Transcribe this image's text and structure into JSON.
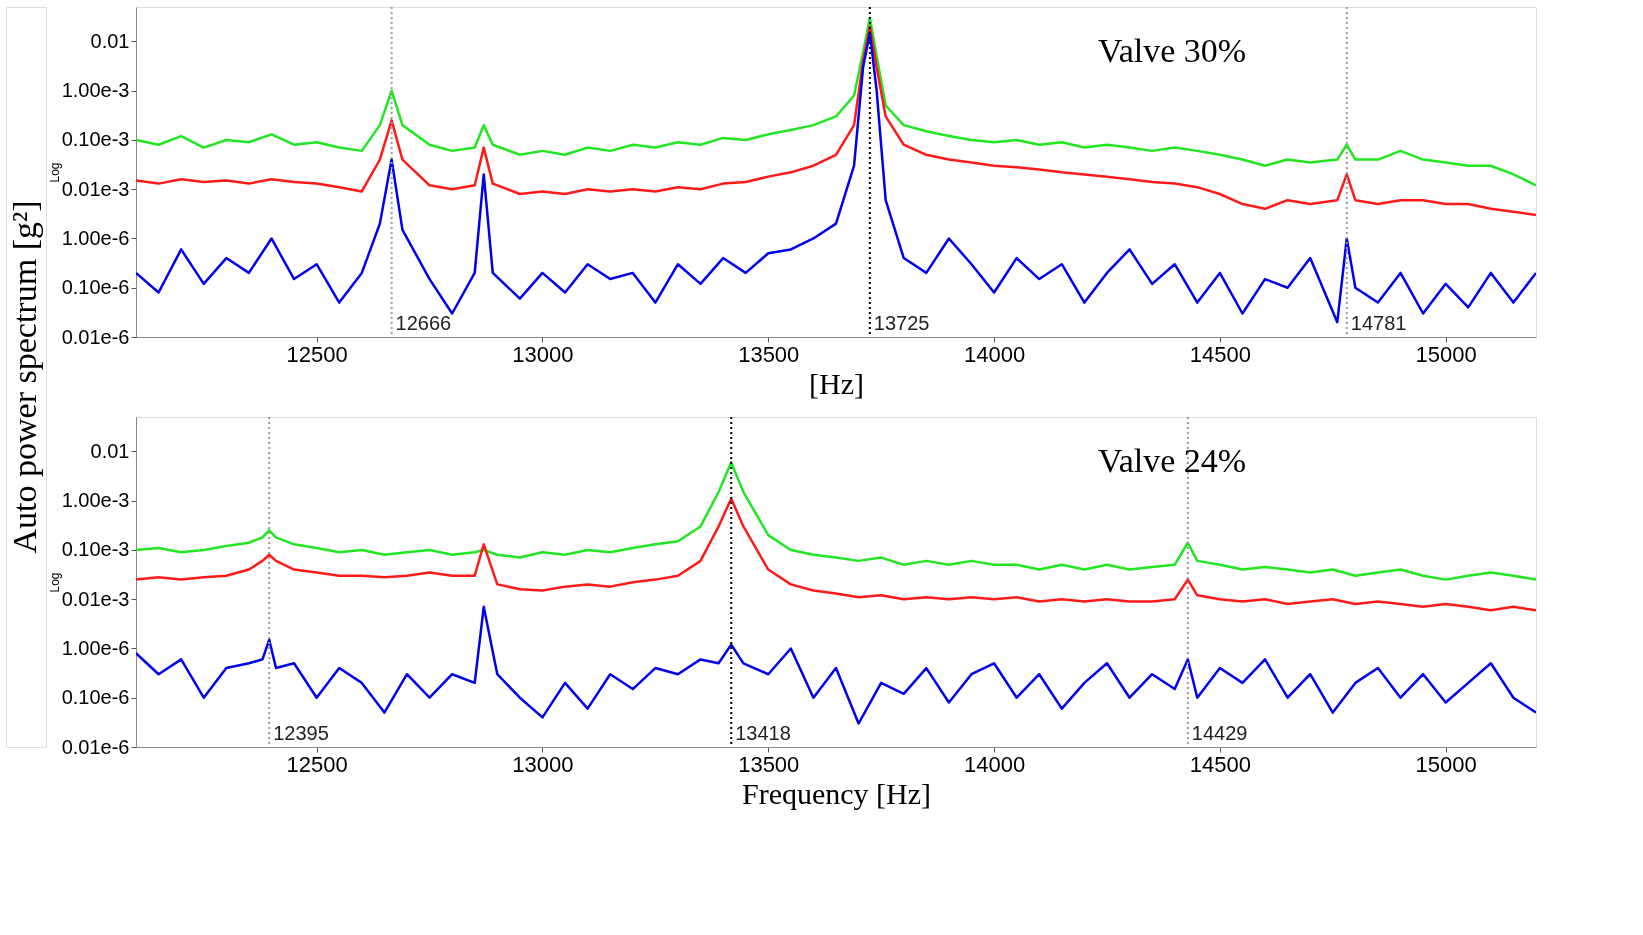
{
  "chart_data": [
    {
      "type": "line",
      "xlabel": "[Hz]",
      "ylabel": "Log",
      "log": "y",
      "grid": false,
      "marker": "none",
      "line_style": "solid",
      "annotations": [
        "Valve 30%",
        "Auto power spectrum [g²]"
      ],
      "xlim": [
        12100,
        15200
      ],
      "xticks": [
        12500,
        13000,
        13500,
        14000,
        14500,
        15000
      ],
      "ylim": [
        1e-08,
        0.05
      ],
      "yticks": [
        {
          "value": 1e-08,
          "label": "0.01e-6"
        },
        {
          "value": 1e-07,
          "label": "0.10e-6"
        },
        {
          "value": 1e-06,
          "label": "1.00e-6"
        },
        {
          "value": 1e-05,
          "label": "0.01e-3"
        },
        {
          "value": 0.0001,
          "label": "0.10e-3"
        },
        {
          "value": 0.001,
          "label": "1.00e-3"
        },
        0.01
      ],
      "x": [
        12100,
        12150,
        12200,
        12250,
        12300,
        12350,
        12400,
        12450,
        12500,
        12550,
        12600,
        12640,
        12666,
        12690,
        12750,
        12800,
        12850,
        12870,
        12890,
        12950,
        13000,
        13050,
        13100,
        13150,
        13200,
        13250,
        13300,
        13350,
        13400,
        13450,
        13500,
        13550,
        13600,
        13650,
        13690,
        13710,
        13725,
        13740,
        13760,
        13800,
        13850,
        13900,
        13950,
        14000,
        14050,
        14100,
        14150,
        14200,
        14250,
        14300,
        14350,
        14400,
        14450,
        14500,
        14550,
        14600,
        14650,
        14700,
        14760,
        14781,
        14800,
        14850,
        14900,
        14950,
        15000,
        15050,
        15100,
        15150,
        15200
      ],
      "series": [
        {
          "color": "#22e622",
          "values": [
            0.0001,
            8e-05,
            0.00012,
            7e-05,
            0.0001,
            9e-05,
            0.00013,
            8e-05,
            9e-05,
            7e-05,
            6e-05,
            0.0002,
            0.001,
            0.0002,
            8e-05,
            6e-05,
            7e-05,
            0.0002,
            8e-05,
            5e-05,
            6e-05,
            5e-05,
            7e-05,
            6e-05,
            8e-05,
            7e-05,
            9e-05,
            8e-05,
            0.00011,
            0.0001,
            0.00013,
            0.00016,
            0.0002,
            0.0003,
            0.0008,
            0.006,
            0.03,
            0.005,
            0.0005,
            0.0002,
            0.00015,
            0.00012,
            0.0001,
            9e-05,
            0.0001,
            8e-05,
            9e-05,
            7e-05,
            8e-05,
            7e-05,
            6e-05,
            7e-05,
            6e-05,
            5e-05,
            4e-05,
            3e-05,
            4e-05,
            3.5e-05,
            4e-05,
            8e-05,
            4e-05,
            4e-05,
            6e-05,
            4e-05,
            3.5e-05,
            3e-05,
            3e-05,
            2e-05,
            1.2e-05
          ]
        },
        {
          "color": "#ff1a1a",
          "values": [
            1.5e-05,
            1.3e-05,
            1.6e-05,
            1.4e-05,
            1.5e-05,
            1.3e-05,
            1.6e-05,
            1.4e-05,
            1.3e-05,
            1.1e-05,
            9e-06,
            4e-05,
            0.00025,
            4e-05,
            1.2e-05,
            1e-05,
            1.2e-05,
            7e-05,
            1.3e-05,
            8e-06,
            9e-06,
            8e-06,
            1e-05,
            9e-06,
            1e-05,
            9e-06,
            1.1e-05,
            1e-05,
            1.3e-05,
            1.4e-05,
            1.8e-05,
            2.2e-05,
            3e-05,
            5e-05,
            0.0002,
            0.004,
            0.02,
            0.003,
            0.0003,
            8e-05,
            5e-05,
            4e-05,
            3.5e-05,
            3e-05,
            2.8e-05,
            2.5e-05,
            2.2e-05,
            2e-05,
            1.8e-05,
            1.6e-05,
            1.4e-05,
            1.3e-05,
            1.1e-05,
            8e-06,
            5e-06,
            4e-06,
            6e-06,
            5e-06,
            6e-06,
            2e-05,
            6e-06,
            5e-06,
            6e-06,
            6e-06,
            5e-06,
            5e-06,
            4e-06,
            3.5e-06,
            3e-06
          ]
        },
        {
          "color": "#0000ee",
          "values": [
            2e-07,
            8e-08,
            6e-07,
            1.2e-07,
            4e-07,
            2e-07,
            1e-06,
            1.5e-07,
            3e-07,
            5e-08,
            2e-07,
            2e-06,
            4e-05,
            1.5e-06,
            1.5e-07,
            3e-08,
            2e-07,
            2e-05,
            2e-07,
            6e-08,
            2e-07,
            8e-08,
            3e-07,
            1.5e-07,
            2e-07,
            5e-08,
            3e-07,
            1.2e-07,
            4e-07,
            2e-07,
            5e-07,
            6e-07,
            1e-06,
            2e-06,
            3e-05,
            0.003,
            0.015,
            0.001,
            6e-06,
            4e-07,
            2e-07,
            1e-06,
            3e-07,
            8e-08,
            4e-07,
            1.5e-07,
            3e-07,
            5e-08,
            2e-07,
            6e-07,
            1.2e-07,
            3e-07,
            5e-08,
            2e-07,
            3e-08,
            1.5e-07,
            1e-07,
            4e-07,
            2e-08,
            1e-06,
            1e-07,
            5e-08,
            2e-07,
            3e-08,
            1.2e-07,
            4e-08,
            2e-07,
            5e-08,
            2e-07
          ]
        }
      ],
      "ref_lines": [
        {
          "axis": "x",
          "value": 12666,
          "label": "12666",
          "color": "#999999",
          "line_style": "dotted"
        },
        {
          "axis": "x",
          "value": 13725,
          "label": "13725",
          "color": "#000000",
          "line_style": "dotted"
        },
        {
          "axis": "x",
          "value": 14781,
          "label": "14781",
          "color": "#999999",
          "line_style": "dotted"
        }
      ]
    },
    {
      "type": "line",
      "xlabel": "Frequency [Hz]",
      "ylabel": "Log",
      "log": "y",
      "grid": false,
      "marker": "none",
      "line_style": "solid",
      "annotations": [
        "Valve 24%"
      ],
      "xlim": [
        12100,
        15200
      ],
      "xticks": [
        12500,
        13000,
        13500,
        14000,
        14500,
        15000
      ],
      "ylim": [
        1e-08,
        0.05
      ],
      "yticks": [
        {
          "value": 1e-08,
          "label": "0.01e-6"
        },
        {
          "value": 1e-07,
          "label": "0.10e-6"
        },
        {
          "value": 1e-06,
          "label": "1.00e-6"
        },
        {
          "value": 1e-05,
          "label": "0.01e-3"
        },
        {
          "value": 0.0001,
          "label": "0.10e-3"
        },
        {
          "value": 0.001,
          "label": "1.00e-3"
        },
        0.01
      ],
      "x": [
        12100,
        12150,
        12200,
        12250,
        12300,
        12350,
        12380,
        12395,
        12410,
        12450,
        12500,
        12550,
        12600,
        12650,
        12700,
        12750,
        12800,
        12850,
        12870,
        12900,
        12950,
        13000,
        13050,
        13100,
        13150,
        13200,
        13250,
        13300,
        13350,
        13390,
        13418,
        13445,
        13500,
        13550,
        13600,
        13650,
        13700,
        13750,
        13800,
        13850,
        13900,
        13950,
        14000,
        14050,
        14100,
        14150,
        14200,
        14250,
        14300,
        14350,
        14400,
        14429,
        14450,
        14500,
        14550,
        14600,
        14650,
        14700,
        14750,
        14800,
        14850,
        14900,
        14950,
        15000,
        15050,
        15100,
        15150,
        15200
      ],
      "series": [
        {
          "color": "#22e622",
          "values": [
            0.0001,
            0.00011,
            9e-05,
            0.0001,
            0.00012,
            0.00014,
            0.00018,
            0.00025,
            0.00018,
            0.00013,
            0.00011,
            9e-05,
            0.0001,
            8e-05,
            9e-05,
            0.0001,
            8e-05,
            9e-05,
            0.0001,
            8e-05,
            7e-05,
            9e-05,
            8e-05,
            0.0001,
            9e-05,
            0.00011,
            0.00013,
            0.00015,
            0.0003,
            0.0015,
            0.006,
            0.0015,
            0.0002,
            0.0001,
            8e-05,
            7e-05,
            6e-05,
            7e-05,
            5e-05,
            6e-05,
            5e-05,
            6e-05,
            5e-05,
            5e-05,
            4e-05,
            5e-05,
            4e-05,
            5e-05,
            4e-05,
            4.5e-05,
            5e-05,
            0.00014,
            6e-05,
            5e-05,
            4e-05,
            4.5e-05,
            4e-05,
            3.5e-05,
            4e-05,
            3e-05,
            3.5e-05,
            4e-05,
            3e-05,
            2.5e-05,
            3e-05,
            3.5e-05,
            3e-05,
            2.5e-05
          ]
        },
        {
          "color": "#ff1a1a",
          "values": [
            2.5e-05,
            2.8e-05,
            2.5e-05,
            2.8e-05,
            3e-05,
            4e-05,
            6e-05,
            8e-05,
            6e-05,
            4e-05,
            3.5e-05,
            3e-05,
            3e-05,
            2.8e-05,
            3e-05,
            3.5e-05,
            3e-05,
            3e-05,
            0.00013,
            2e-05,
            1.6e-05,
            1.5e-05,
            1.8e-05,
            2e-05,
            1.8e-05,
            2.2e-05,
            2.5e-05,
            3e-05,
            6e-05,
            0.0003,
            0.0011,
            0.0003,
            4e-05,
            2e-05,
            1.5e-05,
            1.3e-05,
            1.1e-05,
            1.2e-05,
            1e-05,
            1.1e-05,
            1e-05,
            1.1e-05,
            1e-05,
            1.1e-05,
            9e-06,
            1e-05,
            9e-06,
            1e-05,
            9e-06,
            9e-06,
            1e-05,
            2.5e-05,
            1.2e-05,
            1e-05,
            9e-06,
            1e-05,
            8e-06,
            9e-06,
            1e-05,
            8e-06,
            9e-06,
            8e-06,
            7e-06,
            8e-06,
            7e-06,
            6e-06,
            7e-06,
            6e-06
          ]
        },
        {
          "color": "#0000ee",
          "values": [
            8e-07,
            3e-07,
            6e-07,
            1e-07,
            4e-07,
            5e-07,
            6e-07,
            1.5e-06,
            4e-07,
            5e-07,
            1e-07,
            4e-07,
            2e-07,
            5e-08,
            3e-07,
            1e-07,
            3e-07,
            2e-07,
            7e-06,
            3e-07,
            1e-07,
            4e-08,
            2e-07,
            6e-08,
            3e-07,
            1.5e-07,
            4e-07,
            3e-07,
            6e-07,
            5e-07,
            1.2e-06,
            5e-07,
            3e-07,
            1e-06,
            1e-07,
            4e-07,
            3e-08,
            2e-07,
            1.2e-07,
            4e-07,
            8e-08,
            3e-07,
            5e-07,
            1e-07,
            3e-07,
            6e-08,
            2e-07,
            5e-07,
            1e-07,
            3e-07,
            1.5e-07,
            6e-07,
            1e-07,
            4e-07,
            2e-07,
            6e-07,
            1e-07,
            3e-07,
            5e-08,
            2e-07,
            4e-07,
            1e-07,
            3e-07,
            8e-08,
            2e-07,
            5e-07,
            1e-07,
            5e-08
          ]
        }
      ],
      "ref_lines": [
        {
          "axis": "x",
          "value": 12395,
          "label": "12395",
          "color": "#999999",
          "line_style": "dotted"
        },
        {
          "axis": "x",
          "value": 13418,
          "label": "13418",
          "color": "#000000",
          "line_style": "dotted"
        },
        {
          "axis": "x",
          "value": 14429,
          "label": "14429",
          "color": "#999999",
          "line_style": "dotted"
        }
      ]
    }
  ]
}
